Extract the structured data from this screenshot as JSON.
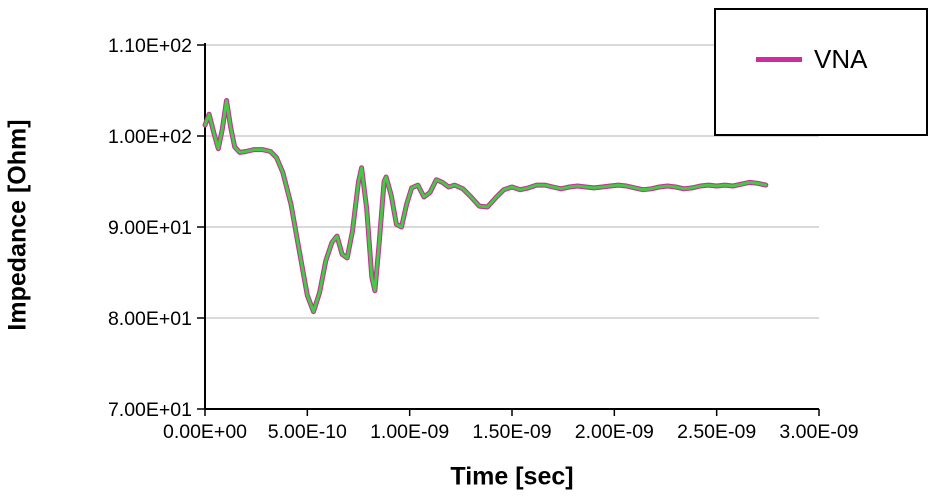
{
  "chart_data": {
    "type": "line",
    "title": "",
    "xlabel": "Time [sec]",
    "ylabel": "Impedance [Ohm]",
    "xlim": [
      0,
      3e-09
    ],
    "ylim": [
      70,
      110
    ],
    "grid": "horizontal",
    "xticks": {
      "values": [
        0,
        5e-10,
        1e-09,
        1.5e-09,
        2e-09,
        2.5e-09,
        3e-09
      ],
      "labels": [
        "0.00E+00",
        "5.00E-10",
        "1.00E-09",
        "1.50E-09",
        "2.00E-09",
        "2.50E-09",
        "3.00E-09"
      ]
    },
    "yticks": {
      "values": [
        70,
        80,
        90,
        100,
        110
      ],
      "labels": [
        "7.00E+01",
        "8.00E+01",
        "9.00E+01",
        "1.00E+02",
        "1.10E+02"
      ]
    },
    "legend": {
      "position": "top-right",
      "entries": [
        {
          "label": "VNA",
          "color": "#CC2E9B"
        }
      ]
    },
    "x": [
      0,
      2e-11,
      4.5e-11,
      6.5e-11,
      8.5e-11,
      1.05e-10,
      1.25e-10,
      1.45e-10,
      1.7e-10,
      2e-10,
      2.4e-10,
      2.8e-10,
      3.2e-10,
      3.5e-10,
      3.8e-10,
      4.2e-10,
      4.6e-10,
      5e-10,
      5.3e-10,
      5.6e-10,
      5.9e-10,
      6.2e-10,
      6.45e-10,
      6.7e-10,
      6.95e-10,
      7.2e-10,
      7.5e-10,
      7.65e-10,
      7.9e-10,
      8.15e-10,
      8.3e-10,
      8.5e-10,
      8.75e-10,
      8.85e-10,
      9.1e-10,
      9.35e-10,
      9.6e-10,
      9.85e-10,
      1.01e-09,
      1.04e-09,
      1.07e-09,
      1.1e-09,
      1.13e-09,
      1.16e-09,
      1.19e-09,
      1.22e-09,
      1.26e-09,
      1.3e-09,
      1.34e-09,
      1.38e-09,
      1.42e-09,
      1.46e-09,
      1.5e-09,
      1.54e-09,
      1.58e-09,
      1.62e-09,
      1.66e-09,
      1.7e-09,
      1.74e-09,
      1.78e-09,
      1.82e-09,
      1.86e-09,
      1.9e-09,
      1.94e-09,
      1.98e-09,
      2.02e-09,
      2.06e-09,
      2.1e-09,
      2.14e-09,
      2.18e-09,
      2.22e-09,
      2.26e-09,
      2.3e-09,
      2.34e-09,
      2.38e-09,
      2.42e-09,
      2.46e-09,
      2.5e-09,
      2.54e-09,
      2.58e-09,
      2.62e-09,
      2.66e-09,
      2.7e-09,
      2.74e-09
    ],
    "y": [
      101.2,
      102.4,
      100.2,
      98.6,
      100.8,
      103.9,
      101.0,
      98.8,
      98.2,
      98.3,
      98.5,
      98.5,
      98.3,
      97.6,
      96.0,
      92.5,
      87.5,
      82.5,
      80.7,
      82.8,
      86.3,
      88.3,
      89.0,
      87.0,
      86.6,
      89.5,
      95.0,
      96.5,
      92.0,
      84.5,
      83.0,
      88.0,
      95.0,
      95.5,
      93.5,
      90.3,
      90.0,
      92.5,
      94.3,
      94.6,
      93.3,
      93.8,
      95.2,
      94.9,
      94.4,
      94.6,
      94.2,
      93.3,
      92.3,
      92.2,
      93.2,
      94.1,
      94.4,
      94.1,
      94.3,
      94.6,
      94.6,
      94.4,
      94.2,
      94.4,
      94.5,
      94.4,
      94.3,
      94.4,
      94.5,
      94.6,
      94.5,
      94.3,
      94.1,
      94.2,
      94.4,
      94.5,
      94.4,
      94.2,
      94.3,
      94.5,
      94.6,
      94.5,
      94.6,
      94.5,
      94.7,
      94.9,
      94.8,
      94.6
    ],
    "series": [
      {
        "name": "VNA",
        "color": "#CC2E9B",
        "width": 5
      },
      {
        "name": "",
        "color": "#3FCE3F",
        "width": 2.8
      }
    ]
  }
}
